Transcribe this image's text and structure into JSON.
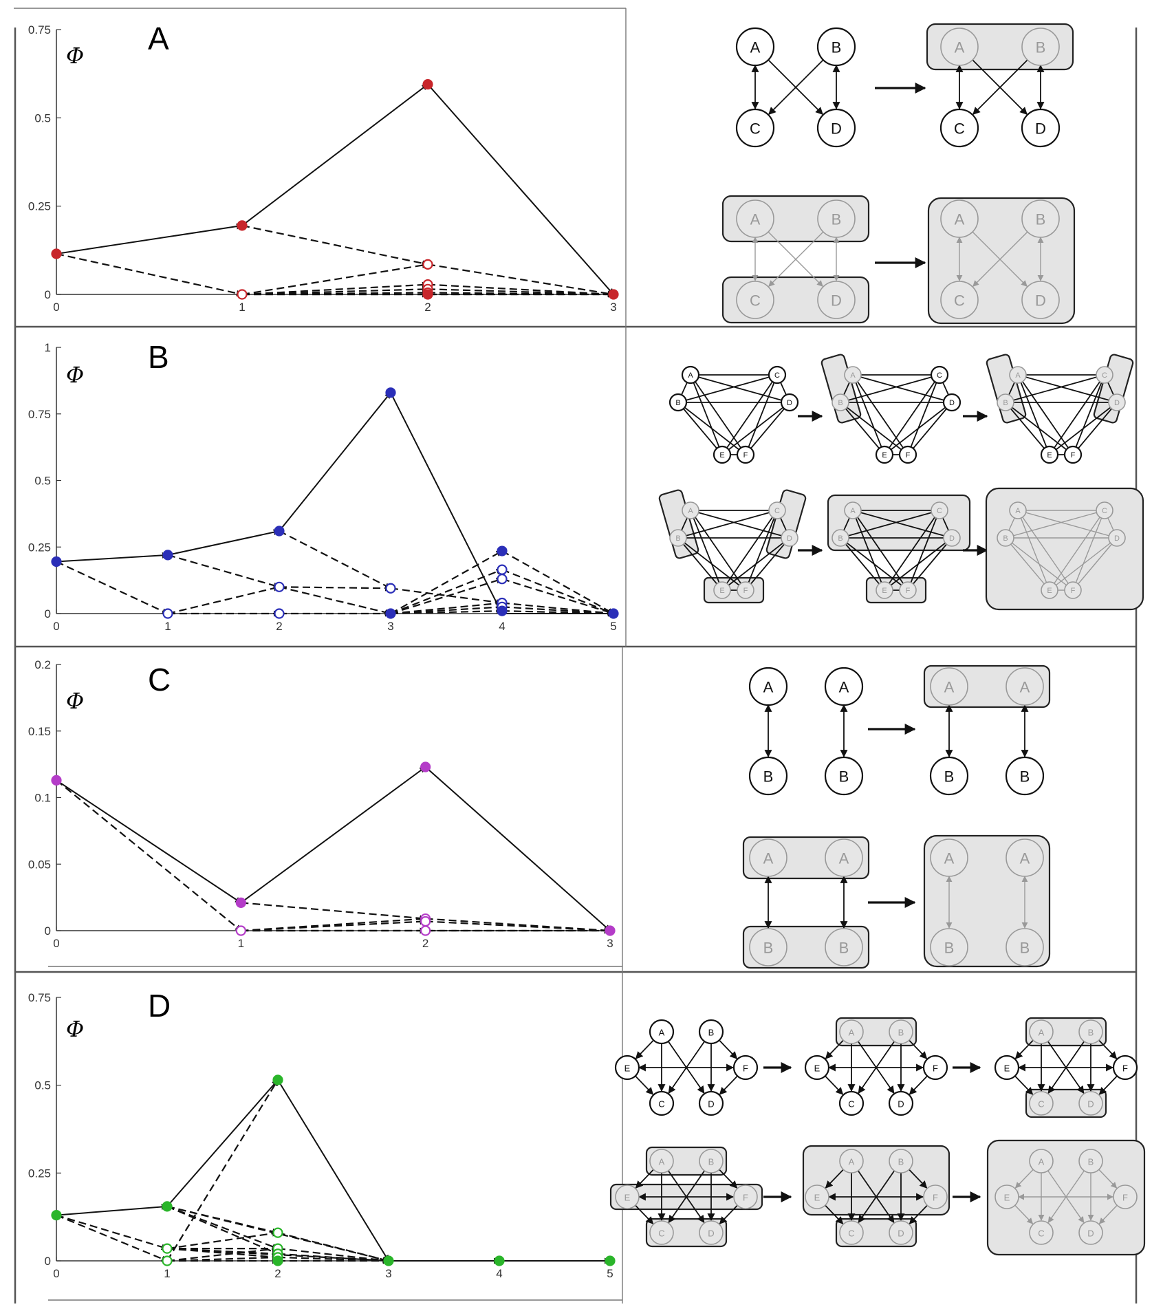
{
  "figure": {
    "phi_symbol": "Φ"
  },
  "chart_data": [
    {
      "panel": "A",
      "type": "line",
      "color": "#c8262b",
      "x_ticks": [
        "0",
        "1",
        "2",
        "3"
      ],
      "y_ticks": [
        "0",
        "0.25",
        "0.5",
        "0.75"
      ],
      "ylim": [
        0,
        0.75
      ],
      "main_path": [
        [
          0,
          0.115
        ],
        [
          1,
          0.195
        ],
        [
          2,
          0.595
        ],
        [
          3,
          0
        ]
      ],
      "points": [
        {
          "x": 0,
          "y": 0.115,
          "filled": true
        },
        {
          "x": 1,
          "y": 0.195,
          "filled": true
        },
        {
          "x": 1,
          "y": 0,
          "filled": false
        },
        {
          "x": 2,
          "y": 0.595,
          "filled": true
        },
        {
          "x": 2,
          "y": 0.085,
          "filled": false
        },
        {
          "x": 2,
          "y": 0.028,
          "filled": false
        },
        {
          "x": 2,
          "y": 0.015,
          "filled": false
        },
        {
          "x": 2,
          "y": 0.005,
          "filled": false
        },
        {
          "x": 2,
          "y": 0,
          "filled": true
        },
        {
          "x": 3,
          "y": 0,
          "filled": true
        }
      ],
      "dashed_edges": [
        [
          [
            0,
            0.115
          ],
          [
            1,
            0
          ]
        ],
        [
          [
            1,
            0.195
          ],
          [
            2,
            0.085
          ]
        ],
        [
          [
            1,
            0
          ],
          [
            2,
            0.085
          ]
        ],
        [
          [
            1,
            0
          ],
          [
            2,
            0.028
          ]
        ],
        [
          [
            1,
            0
          ],
          [
            2,
            0.015
          ]
        ],
        [
          [
            1,
            0
          ],
          [
            2,
            0.005
          ]
        ],
        [
          [
            1,
            0
          ],
          [
            2,
            0
          ]
        ],
        [
          [
            2,
            0.085
          ],
          [
            3,
            0
          ]
        ],
        [
          [
            2,
            0.028
          ],
          [
            3,
            0
          ]
        ],
        [
          [
            2,
            0.015
          ],
          [
            3,
            0
          ]
        ],
        [
          [
            2,
            0.005
          ],
          [
            3,
            0
          ]
        ],
        [
          [
            2,
            0
          ],
          [
            3,
            0
          ]
        ],
        [
          [
            1,
            0
          ],
          [
            3,
            0
          ]
        ]
      ]
    },
    {
      "panel": "B",
      "type": "line",
      "color": "#2b2fb8",
      "x_ticks": [
        "0",
        "1",
        "2",
        "3",
        "4",
        "5"
      ],
      "y_ticks": [
        "0",
        "0.25",
        "0.5",
        "0.75",
        "1"
      ],
      "ylim": [
        0,
        1
      ],
      "main_path": [
        [
          0,
          0.195
        ],
        [
          1,
          0.22
        ],
        [
          2,
          0.31
        ],
        [
          3,
          0.83
        ],
        [
          4,
          0
        ],
        [
          5,
          0
        ]
      ],
      "points": [
        {
          "x": 0,
          "y": 0.195,
          "filled": true
        },
        {
          "x": 1,
          "y": 0.22,
          "filled": true
        },
        {
          "x": 1,
          "y": 0,
          "filled": false
        },
        {
          "x": 2,
          "y": 0.31,
          "filled": true
        },
        {
          "x": 2,
          "y": 0.1,
          "filled": false
        },
        {
          "x": 2,
          "y": 0,
          "filled": false
        },
        {
          "x": 3,
          "y": 0.83,
          "filled": true
        },
        {
          "x": 3,
          "y": 0.095,
          "filled": false
        },
        {
          "x": 3,
          "y": 0,
          "filled": true
        },
        {
          "x": 4,
          "y": 0.235,
          "filled": true
        },
        {
          "x": 4,
          "y": 0.165,
          "filled": false
        },
        {
          "x": 4,
          "y": 0.13,
          "filled": false
        },
        {
          "x": 4,
          "y": 0.04,
          "filled": false
        },
        {
          "x": 4,
          "y": 0.025,
          "filled": false
        },
        {
          "x": 4,
          "y": 0.01,
          "filled": true
        },
        {
          "x": 5,
          "y": 0,
          "filled": true
        }
      ],
      "dashed_edges": [
        [
          [
            0,
            0.195
          ],
          [
            1,
            0
          ]
        ],
        [
          [
            1,
            0.22
          ],
          [
            2,
            0.1
          ]
        ],
        [
          [
            1,
            0
          ],
          [
            2,
            0.1
          ]
        ],
        [
          [
            1,
            0
          ],
          [
            2,
            0
          ]
        ],
        [
          [
            2,
            0.31
          ],
          [
            3,
            0.095
          ]
        ],
        [
          [
            2,
            0.1
          ],
          [
            3,
            0.095
          ]
        ],
        [
          [
            2,
            0.1
          ],
          [
            3,
            0
          ]
        ],
        [
          [
            2,
            0
          ],
          [
            3,
            0
          ]
        ],
        [
          [
            3,
            0
          ],
          [
            4,
            0.235
          ]
        ],
        [
          [
            3,
            0
          ],
          [
            4,
            0.165
          ]
        ],
        [
          [
            3,
            0
          ],
          [
            4,
            0.13
          ]
        ],
        [
          [
            3,
            0
          ],
          [
            4,
            0.04
          ]
        ],
        [
          [
            3,
            0
          ],
          [
            4,
            0.025
          ]
        ],
        [
          [
            3,
            0
          ],
          [
            4,
            0.01
          ]
        ],
        [
          [
            3,
            0.095
          ],
          [
            4,
            0.04
          ]
        ],
        [
          [
            4,
            0.235
          ],
          [
            5,
            0
          ]
        ],
        [
          [
            4,
            0.165
          ],
          [
            5,
            0
          ]
        ],
        [
          [
            4,
            0.13
          ],
          [
            5,
            0
          ]
        ],
        [
          [
            4,
            0.04
          ],
          [
            5,
            0
          ]
        ],
        [
          [
            4,
            0.025
          ],
          [
            5,
            0
          ]
        ],
        [
          [
            4,
            0.01
          ],
          [
            5,
            0
          ]
        ]
      ]
    },
    {
      "panel": "C",
      "type": "line",
      "color": "#b43cc8",
      "x_ticks": [
        "0",
        "1",
        "2",
        "3"
      ],
      "y_ticks": [
        "0",
        "0.05",
        "0.1",
        "0.15",
        "0.2"
      ],
      "ylim": [
        0,
        0.2
      ],
      "main_path": [
        [
          0,
          0.113
        ],
        [
          1,
          0.021
        ],
        [
          2,
          0.123
        ],
        [
          3,
          0
        ]
      ],
      "points": [
        {
          "x": 0,
          "y": 0.113,
          "filled": true
        },
        {
          "x": 1,
          "y": 0.021,
          "filled": true
        },
        {
          "x": 1,
          "y": 0,
          "filled": false
        },
        {
          "x": 2,
          "y": 0.123,
          "filled": true
        },
        {
          "x": 2,
          "y": 0.009,
          "filled": false
        },
        {
          "x": 2,
          "y": 0.007,
          "filled": false
        },
        {
          "x": 2,
          "y": 0,
          "filled": false
        },
        {
          "x": 3,
          "y": 0,
          "filled": true
        }
      ],
      "dashed_edges": [
        [
          [
            0,
            0.113
          ],
          [
            1,
            0
          ]
        ],
        [
          [
            1,
            0.021
          ],
          [
            2,
            0.009
          ]
        ],
        [
          [
            1,
            0
          ],
          [
            2,
            0.009
          ]
        ],
        [
          [
            1,
            0
          ],
          [
            2,
            0.007
          ]
        ],
        [
          [
            1,
            0
          ],
          [
            2,
            0
          ]
        ],
        [
          [
            2,
            0.009
          ],
          [
            3,
            0
          ]
        ],
        [
          [
            2,
            0.007
          ],
          [
            3,
            0
          ]
        ],
        [
          [
            2,
            0
          ],
          [
            3,
            0
          ]
        ],
        [
          [
            1,
            0
          ],
          [
            3,
            0
          ]
        ]
      ]
    },
    {
      "panel": "D",
      "type": "line",
      "color": "#2ab52a",
      "x_ticks": [
        "0",
        "1",
        "2",
        "3",
        "4",
        "5"
      ],
      "y_ticks": [
        "0",
        "0.25",
        "0.5",
        "0.75"
      ],
      "ylim": [
        0,
        0.75
      ],
      "main_path": [
        [
          0,
          0.13
        ],
        [
          1,
          0.155
        ],
        [
          2,
          0.515
        ],
        [
          3,
          0
        ],
        [
          4,
          0
        ],
        [
          5,
          0
        ]
      ],
      "points": [
        {
          "x": 0,
          "y": 0.13,
          "filled": true
        },
        {
          "x": 1,
          "y": 0.155,
          "filled": true
        },
        {
          "x": 1,
          "y": 0.035,
          "filled": false
        },
        {
          "x": 1,
          "y": 0,
          "filled": false
        },
        {
          "x": 2,
          "y": 0.515,
          "filled": true
        },
        {
          "x": 2,
          "y": 0.08,
          "filled": false
        },
        {
          "x": 2,
          "y": 0.035,
          "filled": false
        },
        {
          "x": 2,
          "y": 0.02,
          "filled": false
        },
        {
          "x": 2,
          "y": 0.01,
          "filled": false
        },
        {
          "x": 2,
          "y": 0,
          "filled": true
        },
        {
          "x": 3,
          "y": 0,
          "filled": true
        },
        {
          "x": 4,
          "y": 0,
          "filled": true
        },
        {
          "x": 5,
          "y": 0,
          "filled": true
        }
      ],
      "dashed_edges": [
        [
          [
            0,
            0.13
          ],
          [
            1,
            0.035
          ]
        ],
        [
          [
            0,
            0.13
          ],
          [
            1,
            0
          ]
        ],
        [
          [
            1,
            0
          ],
          [
            2,
            0.515
          ]
        ],
        [
          [
            1,
            0.155
          ],
          [
            2,
            0.08
          ]
        ],
        [
          [
            1,
            0.155
          ],
          [
            2,
            0.035
          ]
        ],
        [
          [
            1,
            0.155
          ],
          [
            2,
            0.02
          ]
        ],
        [
          [
            1,
            0.035
          ],
          [
            2,
            0.08
          ]
        ],
        [
          [
            1,
            0.035
          ],
          [
            2,
            0.035
          ]
        ],
        [
          [
            1,
            0.035
          ],
          [
            2,
            0.02
          ]
        ],
        [
          [
            1,
            0.035
          ],
          [
            2,
            0.01
          ]
        ],
        [
          [
            1,
            0
          ],
          [
            2,
            0.035
          ]
        ],
        [
          [
            1,
            0
          ],
          [
            2,
            0.01
          ]
        ],
        [
          [
            1,
            0
          ],
          [
            2,
            0
          ]
        ],
        [
          [
            2,
            0.08
          ],
          [
            3,
            0
          ]
        ],
        [
          [
            2,
            0.035
          ],
          [
            3,
            0
          ]
        ],
        [
          [
            2,
            0.02
          ],
          [
            3,
            0
          ]
        ],
        [
          [
            2,
            0.01
          ],
          [
            3,
            0
          ]
        ],
        [
          [
            2,
            0
          ],
          [
            3,
            0
          ]
        ],
        [
          [
            1,
            0.155
          ],
          [
            3,
            0
          ]
        ],
        [
          [
            1,
            0.035
          ],
          [
            3,
            0
          ]
        ]
      ]
    }
  ],
  "diagrams": {
    "A": {
      "label": "A",
      "nodes": [
        "A",
        "B",
        "C",
        "D"
      ]
    },
    "B": {
      "label": "B",
      "nodes": [
        "A",
        "B",
        "C",
        "D",
        "E",
        "F"
      ]
    },
    "C": {
      "label": "C",
      "nodes": [
        "A",
        "B"
      ]
    },
    "D": {
      "label": "D",
      "nodes": [
        "A",
        "B",
        "C",
        "D",
        "E",
        "F"
      ]
    }
  }
}
